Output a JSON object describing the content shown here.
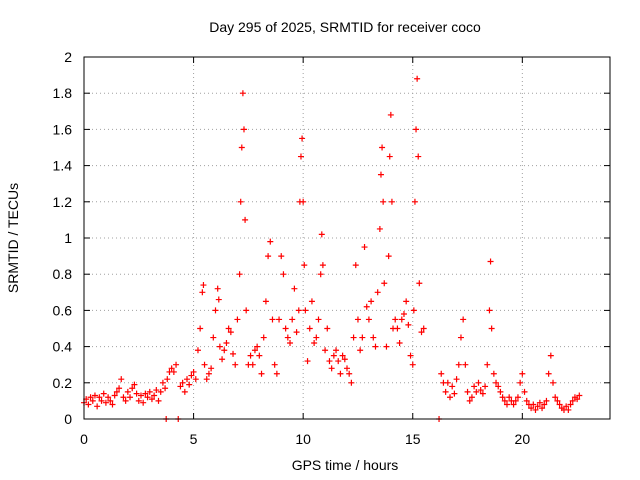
{
  "chart_data": {
    "type": "scatter",
    "title": "Day 295 of 2025, SRMTID for receiver coco",
    "xlabel": "GPS time / hours",
    "ylabel": "SRMTID / TECUs",
    "xlim": [
      0,
      24
    ],
    "ylim": [
      0,
      2
    ],
    "xticks": [
      0,
      5,
      10,
      15,
      20
    ],
    "xtick_labels": [
      "0",
      "5",
      "10",
      "15",
      "20"
    ],
    "yticks": [
      0,
      0.2,
      0.4,
      0.6,
      0.8,
      1,
      1.2,
      1.4,
      1.6,
      1.8,
      2
    ],
    "ytick_labels": [
      "0",
      "0.2",
      "0.4",
      "0.6",
      "0.8",
      "1",
      "1.2",
      "1.4",
      "1.6",
      "1.8",
      "2"
    ],
    "grid": true,
    "marker": "plus",
    "series": [
      {
        "name": "SRMTID",
        "color": "#ff0000",
        "points": [
          [
            0.0,
            0.09
          ],
          [
            0.1,
            0.11
          ],
          [
            0.2,
            0.08
          ],
          [
            0.3,
            0.12
          ],
          [
            0.4,
            0.1
          ],
          [
            0.5,
            0.13
          ],
          [
            0.6,
            0.07
          ],
          [
            0.7,
            0.12
          ],
          [
            0.8,
            0.1
          ],
          [
            0.9,
            0.14
          ],
          [
            1.0,
            0.09
          ],
          [
            1.1,
            0.12
          ],
          [
            1.2,
            0.1
          ],
          [
            1.3,
            0.08
          ],
          [
            1.4,
            0.13
          ],
          [
            1.5,
            0.15
          ],
          [
            1.6,
            0.17
          ],
          [
            1.7,
            0.22
          ],
          [
            1.8,
            0.12
          ],
          [
            1.9,
            0.1
          ],
          [
            2.0,
            0.15
          ],
          [
            2.1,
            0.12
          ],
          [
            2.2,
            0.17
          ],
          [
            2.3,
            0.19
          ],
          [
            2.4,
            0.14
          ],
          [
            2.5,
            0.1
          ],
          [
            2.6,
            0.13
          ],
          [
            2.7,
            0.09
          ],
          [
            2.8,
            0.14
          ],
          [
            2.9,
            0.12
          ],
          [
            3.0,
            0.15
          ],
          [
            3.1,
            0.11
          ],
          [
            3.2,
            0.13
          ],
          [
            3.3,
            0.16
          ],
          [
            3.4,
            0.1
          ],
          [
            3.5,
            0.15
          ],
          [
            3.6,
            0.2
          ],
          [
            3.7,
            0.17
          ],
          [
            3.8,
            0.22
          ],
          [
            3.9,
            0.26
          ],
          [
            4.0,
            0.28
          ],
          [
            4.1,
            0.26
          ],
          [
            4.2,
            0.3
          ],
          [
            3.75,
            0.0
          ],
          [
            4.3,
            0.0
          ],
          [
            4.4,
            0.18
          ],
          [
            4.5,
            0.2
          ],
          [
            4.6,
            0.15
          ],
          [
            4.7,
            0.22
          ],
          [
            4.8,
            0.19
          ],
          [
            4.9,
            0.24
          ],
          [
            5.0,
            0.26
          ],
          [
            5.1,
            0.22
          ],
          [
            5.2,
            0.38
          ],
          [
            5.3,
            0.5
          ],
          [
            5.4,
            0.7
          ],
          [
            5.45,
            0.74
          ],
          [
            5.5,
            0.3
          ],
          [
            5.6,
            0.22
          ],
          [
            5.7,
            0.25
          ],
          [
            5.8,
            0.28
          ],
          [
            5.9,
            0.45
          ],
          [
            6.0,
            0.6
          ],
          [
            6.1,
            0.72
          ],
          [
            6.15,
            0.66
          ],
          [
            6.2,
            0.4
          ],
          [
            6.3,
            0.33
          ],
          [
            6.4,
            0.38
          ],
          [
            6.5,
            0.42
          ],
          [
            6.6,
            0.5
          ],
          [
            6.7,
            0.48
          ],
          [
            6.8,
            0.36
          ],
          [
            6.9,
            0.3
          ],
          [
            7.0,
            0.55
          ],
          [
            7.1,
            0.8
          ],
          [
            7.15,
            1.2
          ],
          [
            7.2,
            1.5
          ],
          [
            7.25,
            1.8
          ],
          [
            7.3,
            1.6
          ],
          [
            7.35,
            1.1
          ],
          [
            7.4,
            0.6
          ],
          [
            7.5,
            0.3
          ],
          [
            7.6,
            0.35
          ],
          [
            7.7,
            0.3
          ],
          [
            7.8,
            0.38
          ],
          [
            7.9,
            0.4
          ],
          [
            8.0,
            0.35
          ],
          [
            8.1,
            0.25
          ],
          [
            8.2,
            0.45
          ],
          [
            8.3,
            0.65
          ],
          [
            8.4,
            0.9
          ],
          [
            8.5,
            0.98
          ],
          [
            8.6,
            0.55
          ],
          [
            8.7,
            0.3
          ],
          [
            8.8,
            0.25
          ],
          [
            8.9,
            0.55
          ],
          [
            9.0,
            0.9
          ],
          [
            9.1,
            0.8
          ],
          [
            9.2,
            0.5
          ],
          [
            9.3,
            0.45
          ],
          [
            9.4,
            0.42
          ],
          [
            9.5,
            0.55
          ],
          [
            9.6,
            0.72
          ],
          [
            9.7,
            0.48
          ],
          [
            9.8,
            0.6
          ],
          [
            9.85,
            1.2
          ],
          [
            9.9,
            1.45
          ],
          [
            9.95,
            1.55
          ],
          [
            10.0,
            1.2
          ],
          [
            10.05,
            0.85
          ],
          [
            10.1,
            0.6
          ],
          [
            10.2,
            0.32
          ],
          [
            10.3,
            0.5
          ],
          [
            10.4,
            0.65
          ],
          [
            10.5,
            0.42
          ],
          [
            10.6,
            0.45
          ],
          [
            10.7,
            0.55
          ],
          [
            10.8,
            0.8
          ],
          [
            10.85,
            1.02
          ],
          [
            10.9,
            0.85
          ],
          [
            11.0,
            0.38
          ],
          [
            11.1,
            0.5
          ],
          [
            11.2,
            0.32
          ],
          [
            11.3,
            0.28
          ],
          [
            11.4,
            0.35
          ],
          [
            11.5,
            0.38
          ],
          [
            11.6,
            0.32
          ],
          [
            11.7,
            0.25
          ],
          [
            11.8,
            0.35
          ],
          [
            11.9,
            0.33
          ],
          [
            12.0,
            0.28
          ],
          [
            12.1,
            0.25
          ],
          [
            12.2,
            0.2
          ],
          [
            12.3,
            0.45
          ],
          [
            12.4,
            0.85
          ],
          [
            12.5,
            0.55
          ],
          [
            12.6,
            0.38
          ],
          [
            12.7,
            0.45
          ],
          [
            12.8,
            0.95
          ],
          [
            12.9,
            0.62
          ],
          [
            13.0,
            0.55
          ],
          [
            13.1,
            0.65
          ],
          [
            13.2,
            0.45
          ],
          [
            13.3,
            0.4
          ],
          [
            13.4,
            0.7
          ],
          [
            13.5,
            1.05
          ],
          [
            13.55,
            1.35
          ],
          [
            13.6,
            1.5
          ],
          [
            13.65,
            1.2
          ],
          [
            13.7,
            0.75
          ],
          [
            13.8,
            0.4
          ],
          [
            13.9,
            0.9
          ],
          [
            13.95,
            1.45
          ],
          [
            14.0,
            1.68
          ],
          [
            14.05,
            1.2
          ],
          [
            14.1,
            0.5
          ],
          [
            14.2,
            0.55
          ],
          [
            14.3,
            0.5
          ],
          [
            14.4,
            0.42
          ],
          [
            14.5,
            0.55
          ],
          [
            14.6,
            0.58
          ],
          [
            14.7,
            0.65
          ],
          [
            14.8,
            0.52
          ],
          [
            14.9,
            0.35
          ],
          [
            15.0,
            0.3
          ],
          [
            15.05,
            0.6
          ],
          [
            15.1,
            1.2
          ],
          [
            15.15,
            1.6
          ],
          [
            15.2,
            1.88
          ],
          [
            15.25,
            1.45
          ],
          [
            15.3,
            0.75
          ],
          [
            15.4,
            0.48
          ],
          [
            15.5,
            0.5
          ],
          [
            16.2,
            0.0
          ],
          [
            16.3,
            0.25
          ],
          [
            16.4,
            0.2
          ],
          [
            16.5,
            0.15
          ],
          [
            16.6,
            0.2
          ],
          [
            16.7,
            0.12
          ],
          [
            16.8,
            0.18
          ],
          [
            16.9,
            0.14
          ],
          [
            17.0,
            0.22
          ],
          [
            17.1,
            0.3
          ],
          [
            17.2,
            0.45
          ],
          [
            17.3,
            0.55
          ],
          [
            17.4,
            0.3
          ],
          [
            17.5,
            0.15
          ],
          [
            17.6,
            0.1
          ],
          [
            17.7,
            0.12
          ],
          [
            17.8,
            0.18
          ],
          [
            17.9,
            0.15
          ],
          [
            18.0,
            0.2
          ],
          [
            18.1,
            0.16
          ],
          [
            18.2,
            0.14
          ],
          [
            18.3,
            0.18
          ],
          [
            18.4,
            0.3
          ],
          [
            18.5,
            0.6
          ],
          [
            18.55,
            0.87
          ],
          [
            18.6,
            0.5
          ],
          [
            18.7,
            0.25
          ],
          [
            18.8,
            0.2
          ],
          [
            18.9,
            0.18
          ],
          [
            19.0,
            0.15
          ],
          [
            19.1,
            0.12
          ],
          [
            19.2,
            0.1
          ],
          [
            19.3,
            0.08
          ],
          [
            19.4,
            0.12
          ],
          [
            19.5,
            0.1
          ],
          [
            19.6,
            0.08
          ],
          [
            19.7,
            0.1
          ],
          [
            19.8,
            0.12
          ],
          [
            19.9,
            0.2
          ],
          [
            20.0,
            0.25
          ],
          [
            20.1,
            0.15
          ],
          [
            20.2,
            0.1
          ],
          [
            20.3,
            0.08
          ],
          [
            20.4,
            0.06
          ],
          [
            20.5,
            0.08
          ],
          [
            20.6,
            0.05
          ],
          [
            20.7,
            0.07
          ],
          [
            20.8,
            0.09
          ],
          [
            20.9,
            0.06
          ],
          [
            21.0,
            0.08
          ],
          [
            21.1,
            0.1
          ],
          [
            21.2,
            0.25
          ],
          [
            21.3,
            0.35
          ],
          [
            21.4,
            0.2
          ],
          [
            21.5,
            0.12
          ],
          [
            21.6,
            0.1
          ],
          [
            21.7,
            0.08
          ],
          [
            21.8,
            0.06
          ],
          [
            21.9,
            0.05
          ],
          [
            22.0,
            0.07
          ],
          [
            22.1,
            0.05
          ],
          [
            22.2,
            0.08
          ],
          [
            22.3,
            0.1
          ],
          [
            22.4,
            0.12
          ],
          [
            22.5,
            0.11
          ],
          [
            22.6,
            0.13
          ]
        ]
      }
    ]
  }
}
